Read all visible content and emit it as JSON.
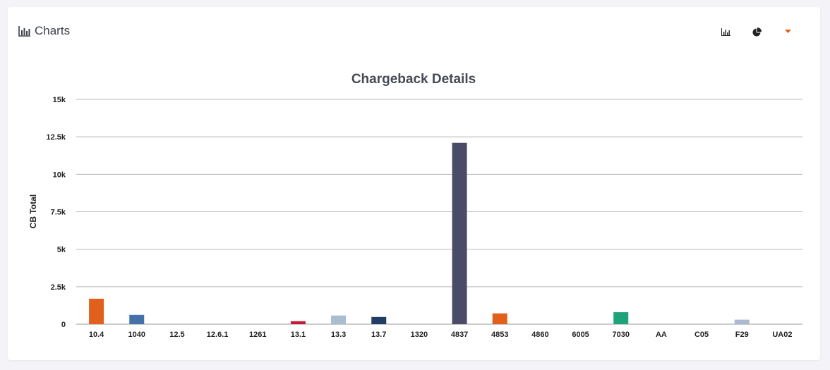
{
  "header": {
    "title": "Charts",
    "title_icon": "bar-chart-icon"
  },
  "toolbar": {
    "buttons": [
      {
        "icon": "bar-chart-icon"
      },
      {
        "icon": "pie-chart-icon"
      },
      {
        "icon": "caret-down-icon",
        "color": "#e05e1b"
      }
    ]
  },
  "chart_data": {
    "type": "bar",
    "title": "Chargeback Details",
    "xlabel": "",
    "ylabel": "CB Total",
    "ylim": [
      0,
      15000
    ],
    "yticks": [
      0,
      2500,
      5000,
      7500,
      10000,
      12500,
      15000
    ],
    "ytick_labels": [
      "0",
      "2.5k",
      "5k",
      "7.5k",
      "10k",
      "12.5k",
      "15k"
    ],
    "grid": true,
    "categories": [
      "10.4",
      "1040",
      "12.5",
      "12.6.1",
      "1261",
      "13.1",
      "13.3",
      "13.7",
      "1320",
      "4837",
      "4853",
      "4860",
      "6005",
      "7030",
      "AA",
      "C05",
      "F29",
      "UA02"
    ],
    "values": [
      1700,
      620,
      0,
      0,
      0,
      200,
      580,
      480,
      0,
      12100,
      720,
      0,
      0,
      800,
      0,
      0,
      300,
      0
    ],
    "colors": [
      "#e0601c",
      "#4372a9",
      "#e0601c",
      "#4372a9",
      "#4372a9",
      "#c21b3a",
      "#a9bcd3",
      "#213d64",
      "#4372a9",
      "#4a4b66",
      "#e0601c",
      "#4372a9",
      "#4372a9",
      "#1fa37b",
      "#4372a9",
      "#4372a9",
      "#a8b9d0",
      "#4372a9"
    ]
  }
}
